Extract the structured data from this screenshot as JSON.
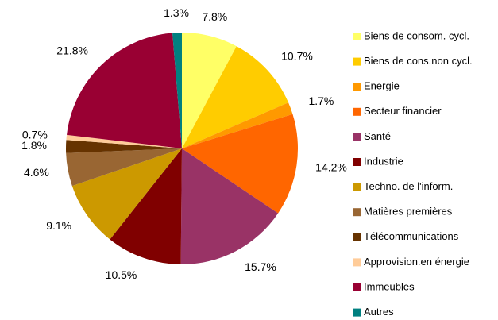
{
  "chart_data": {
    "type": "pie",
    "categories": [
      "Biens de consom. cycl.",
      "Biens de cons.non cycl.",
      "Energie",
      "Secteur financier",
      "Santé",
      "Industrie",
      "Techno. de l'inform.",
      "Matières premières",
      "Télécommunications",
      "Approvision.en énergie",
      "Immeubles",
      "Autres"
    ],
    "values": [
      7.8,
      10.7,
      1.7,
      14.2,
      15.7,
      10.5,
      9.1,
      4.6,
      1.8,
      0.7,
      21.8,
      1.3
    ],
    "value_labels": [
      "7.8%",
      "10.7%",
      "1.7%",
      "14.2%",
      "15.7%",
      "10.5%",
      "9.1%",
      "4.6%",
      "1.8%",
      "0.7%",
      "21.8%",
      "1.3%"
    ],
    "colors": [
      "#ffff66",
      "#ffcc00",
      "#ff9900",
      "#ff6600",
      "#993366",
      "#800000",
      "#cc9900",
      "#996633",
      "#663300",
      "#ffcc99",
      "#990033",
      "#008080"
    ],
    "legend": "right"
  }
}
